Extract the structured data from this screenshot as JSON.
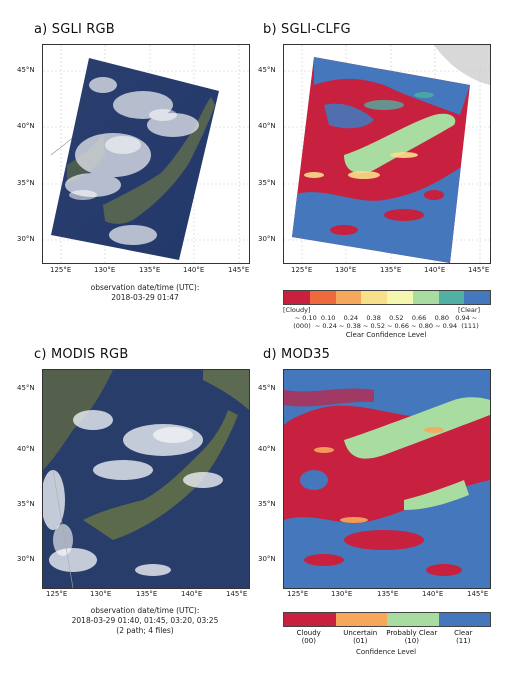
{
  "panels": {
    "a": {
      "title": "a) SGLI RGB"
    },
    "b": {
      "title": "b) SGLI-CLFG"
    },
    "c": {
      "title": "c) MODIS RGB"
    },
    "d": {
      "title": "d) MOD35"
    }
  },
  "lat_ticks_top": [
    "45°N",
    "40°N",
    "35°N",
    "30°N"
  ],
  "lat_ticks_bottom": [
    "45°N",
    "40°N",
    "35°N",
    "30°N"
  ],
  "lon_ticks": [
    "125°E",
    "130°E",
    "135°E",
    "140°E",
    "145°E"
  ],
  "caption_a": {
    "line1": "observation date/time (UTC):",
    "line2": "2018-03-29 01:47"
  },
  "caption_c": {
    "line1": "observation date/time (UTC):",
    "line2": "2018-03-29 01:40, 01:45, 03:20, 03:25",
    "line3": "(2 path; 4 files)"
  },
  "colorbar_b": {
    "colors": [
      "#c8203f",
      "#ee6a3c",
      "#f6a85a",
      "#f8df8a",
      "#f5f7b0",
      "#a8dca0",
      "#4fb0a3",
      "#4477bb"
    ],
    "left_label": "[Cloudy]",
    "right_label": "[Clear]",
    "row1": "~ 0.10  0.10    0.24    0.38    0.52    0.66    0.80   0.94 ~",
    "row2": "(000)  ~ 0.24 ~ 0.38 ~ 0.52 ~ 0.66 ~ 0.80 ~ 0.94  (111)",
    "axis_label": "Clear Confidence Level"
  },
  "colorbar_d": {
    "colors": [
      "#c8203f",
      "#f6a85a",
      "#a8dca0",
      "#4477bb"
    ],
    "labels": [
      {
        "name": "Cloudy",
        "code": "(00)"
      },
      {
        "name": "Uncertain",
        "code": "(01)"
      },
      {
        "name": "Probably Clear",
        "code": "(10)"
      },
      {
        "name": "Clear",
        "code": "(11)"
      }
    ],
    "axis_label": "Confidence Level"
  }
}
